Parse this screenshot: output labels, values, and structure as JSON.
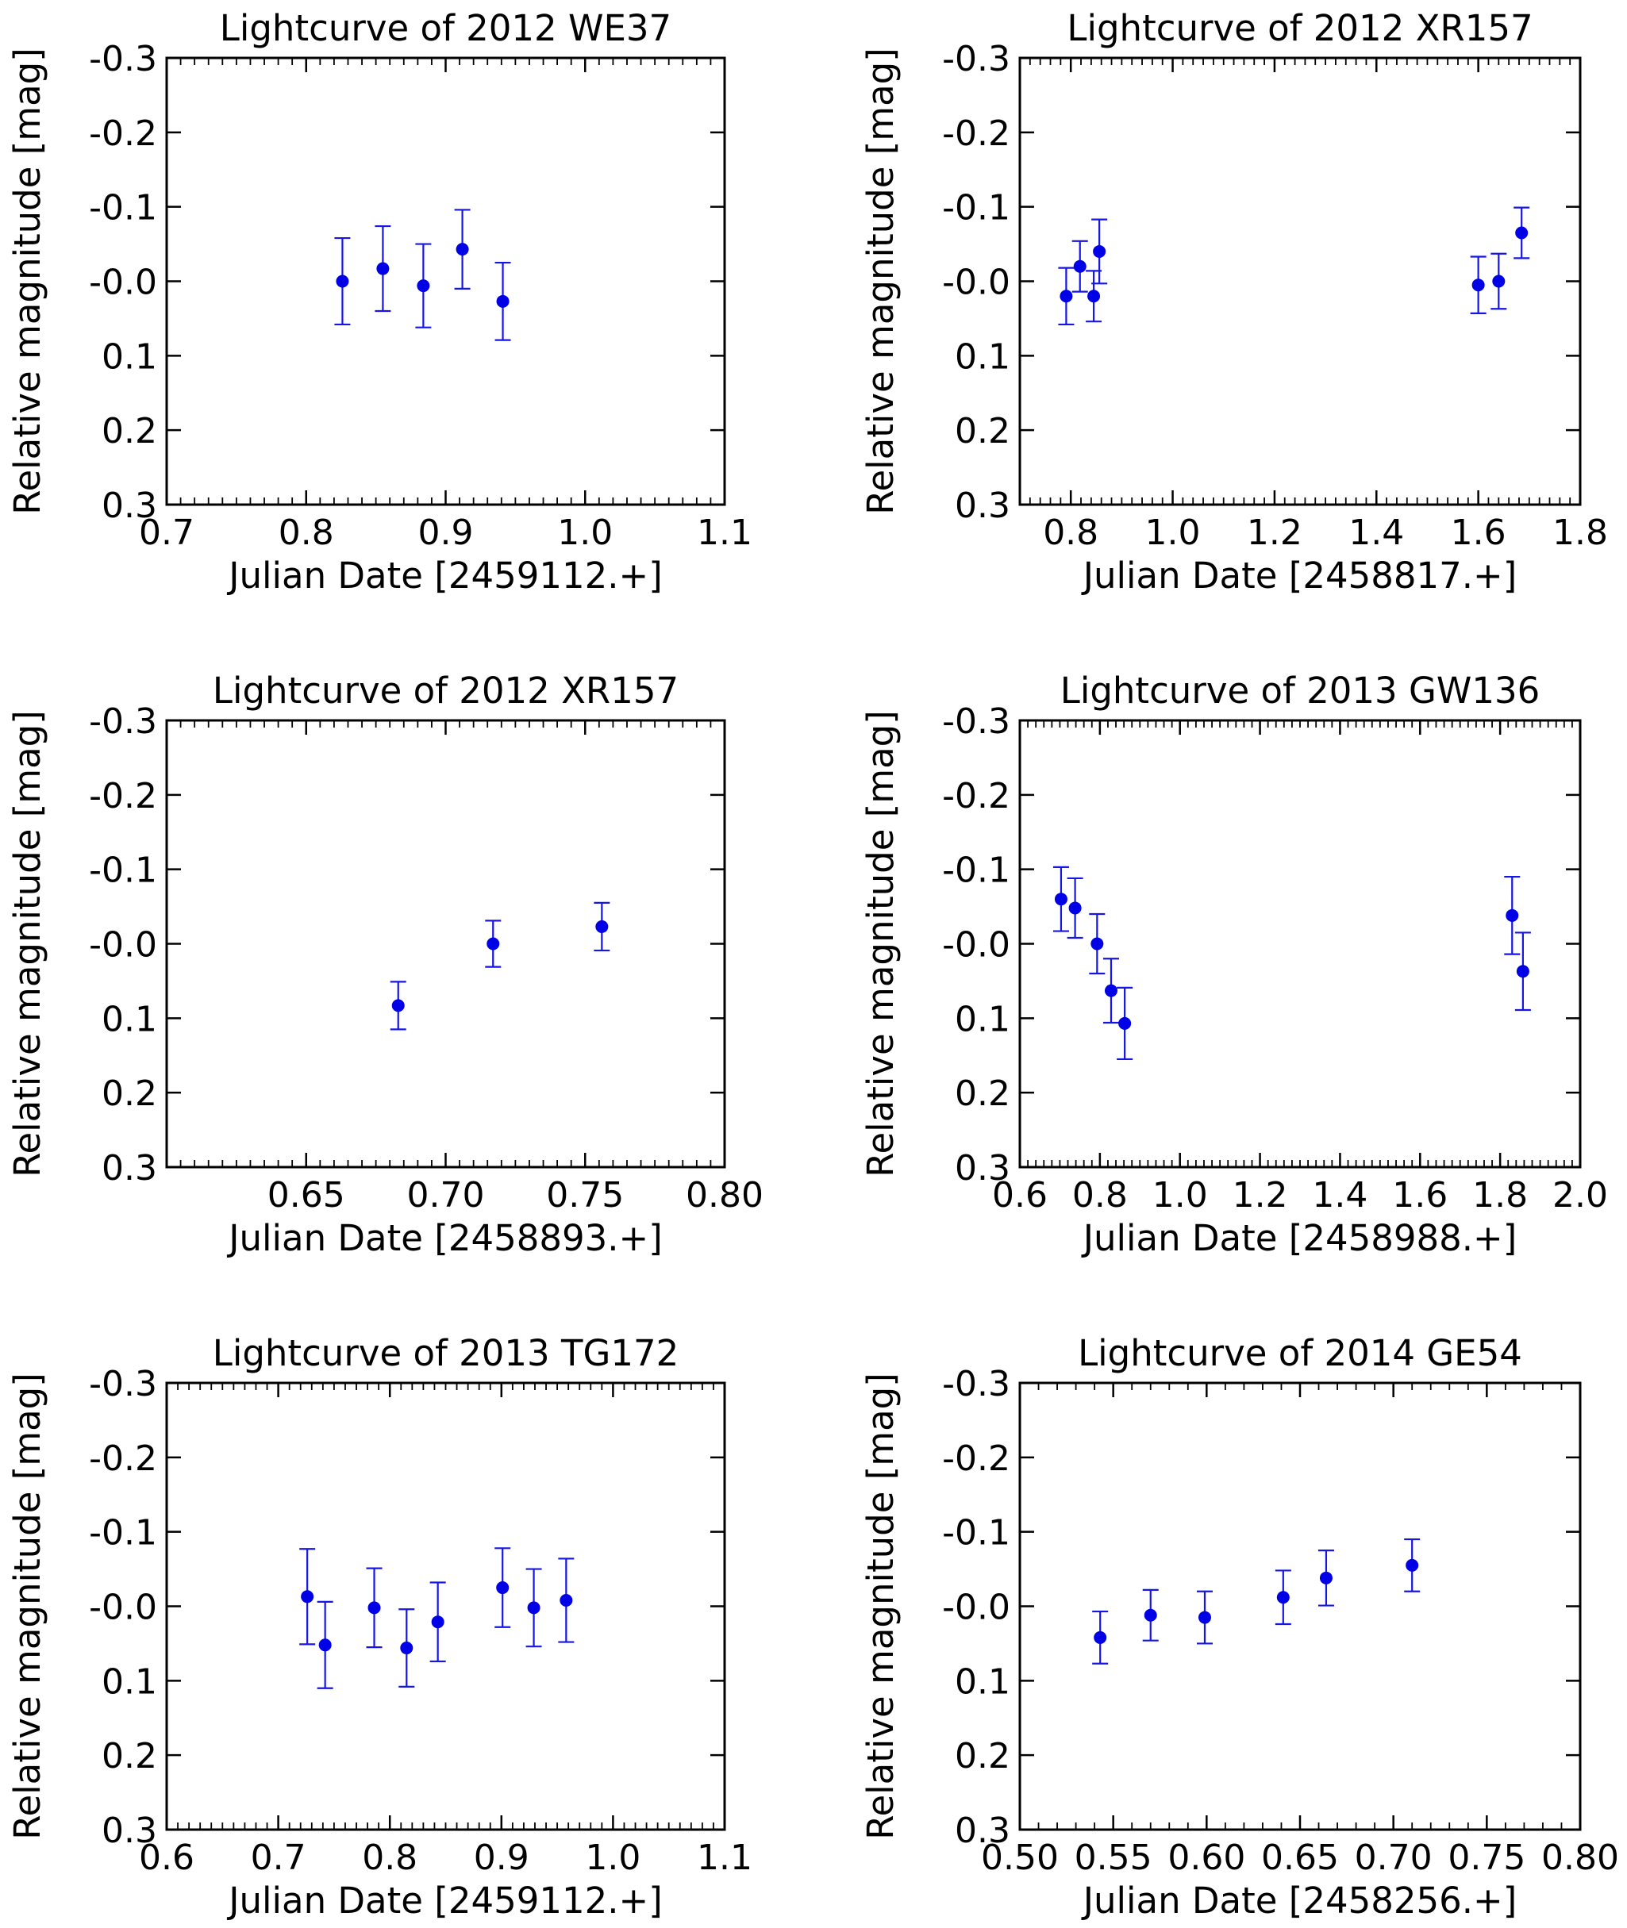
{
  "chart_data": [
    {
      "type": "scatter",
      "title": "Lightcurve of 2012 WE37",
      "xlabel": "Julian Date [2459112.+]",
      "ylabel": "Relative magnitude [mag]",
      "xlim": [
        0.7,
        1.1
      ],
      "ylim": [
        0.3,
        -0.3
      ],
      "x_ticks": [
        0.7,
        0.8,
        0.9,
        1.0,
        1.1
      ],
      "x_tick_labels": [
        "0.7",
        "0.8",
        "0.9",
        "1.0",
        "1.1"
      ],
      "x_minor_step": 0.01,
      "y_ticks": [
        -0.3,
        -0.2,
        -0.1,
        0.0,
        0.1,
        0.2,
        0.3
      ],
      "y_tick_labels": [
        "-0.3",
        "-0.2",
        "-0.1",
        "-0.0",
        "0.1",
        "0.2",
        "0.3"
      ],
      "series": [
        {
          "name": "2012 WE37",
          "x": [
            0.826,
            0.855,
            0.884,
            0.912,
            0.941
          ],
          "y": [
            0.0,
            -0.017,
            0.006,
            -0.043,
            0.027
          ],
          "yerr": [
            0.058,
            0.057,
            0.056,
            0.053,
            0.052
          ]
        }
      ]
    },
    {
      "type": "scatter",
      "title": "Lightcurve of 2012 XR157",
      "xlabel": "Julian Date [2458817.+]",
      "ylabel": "Relative magnitude [mag]",
      "xlim": [
        0.7,
        1.8
      ],
      "ylim": [
        0.3,
        -0.3
      ],
      "x_ticks": [
        0.8,
        1.0,
        1.2,
        1.4,
        1.6,
        1.8
      ],
      "x_tick_labels": [
        "0.8",
        "1.0",
        "1.2",
        "1.4",
        "1.6",
        "1.8"
      ],
      "x_minor_step": 0.02,
      "y_ticks": [
        -0.3,
        -0.2,
        -0.1,
        0.0,
        0.1,
        0.2,
        0.3
      ],
      "y_tick_labels": [
        "-0.3",
        "-0.2",
        "-0.1",
        "-0.0",
        "0.1",
        "0.2",
        "0.3"
      ],
      "series": [
        {
          "name": "2012 XR157",
          "x": [
            0.791,
            0.818,
            0.845,
            0.856,
            1.6,
            1.64,
            1.685
          ],
          "y": [
            0.02,
            -0.02,
            0.02,
            -0.04,
            0.005,
            0.0,
            -0.065
          ],
          "yerr": [
            0.038,
            0.034,
            0.034,
            0.043,
            0.038,
            0.037,
            0.034
          ]
        }
      ]
    },
    {
      "type": "scatter",
      "title": "Lightcurve of 2012 XR157",
      "xlabel": "Julian Date [2458893.+]",
      "ylabel": "Relative magnitude [mag]",
      "xlim": [
        0.6,
        0.8
      ],
      "ylim": [
        0.3,
        -0.3
      ],
      "x_ticks": [
        0.65,
        0.7,
        0.75,
        0.8
      ],
      "x_tick_labels": [
        "0.65",
        "0.70",
        "0.75",
        "0.80"
      ],
      "x_minor_step": 0.005,
      "y_ticks": [
        -0.3,
        -0.2,
        -0.1,
        0.0,
        0.1,
        0.2,
        0.3
      ],
      "y_tick_labels": [
        "-0.3",
        "-0.2",
        "-0.1",
        "-0.0",
        "0.1",
        "0.2",
        "0.3"
      ],
      "series": [
        {
          "name": "2012 XR157",
          "x": [
            0.683,
            0.717,
            0.756
          ],
          "y": [
            0.083,
            0.0,
            -0.023
          ],
          "yerr": [
            0.032,
            0.031,
            0.032
          ]
        }
      ]
    },
    {
      "type": "scatter",
      "title": "Lightcurve of 2013 GW136",
      "xlabel": "Julian Date [2458988.+]",
      "ylabel": "Relative magnitude [mag]",
      "xlim": [
        0.6,
        2.0
      ],
      "ylim": [
        0.3,
        -0.3
      ],
      "x_ticks": [
        0.6,
        0.8,
        1.0,
        1.2,
        1.4,
        1.6,
        1.8,
        2.0
      ],
      "x_tick_labels": [
        "0.6",
        "0.8",
        "1.0",
        "1.2",
        "1.4",
        "1.6",
        "1.8",
        "2.0"
      ],
      "x_minor_step": 0.02,
      "y_ticks": [
        -0.3,
        -0.2,
        -0.1,
        0.0,
        0.1,
        0.2,
        0.3
      ],
      "y_tick_labels": [
        "-0.3",
        "-0.2",
        "-0.1",
        "-0.0",
        "0.1",
        "0.2",
        "0.3"
      ],
      "series": [
        {
          "name": "2013 GW136",
          "x": [
            0.703,
            0.738,
            0.793,
            0.828,
            0.862,
            1.83,
            1.857
          ],
          "y": [
            -0.06,
            -0.048,
            0.0,
            0.063,
            0.107,
            -0.038,
            0.037
          ],
          "yerr": [
            0.043,
            0.04,
            0.04,
            0.043,
            0.048,
            0.052,
            0.052
          ]
        }
      ]
    },
    {
      "type": "scatter",
      "title": "Lightcurve of 2013 TG172",
      "xlabel": "Julian Date [2459112.+]",
      "ylabel": "Relative magnitude [mag]",
      "xlim": [
        0.6,
        1.1
      ],
      "ylim": [
        0.3,
        -0.3
      ],
      "x_ticks": [
        0.6,
        0.7,
        0.8,
        0.9,
        1.0,
        1.1
      ],
      "x_tick_labels": [
        "0.6",
        "0.7",
        "0.8",
        "0.9",
        "1.0",
        "1.1"
      ],
      "x_minor_step": 0.01,
      "y_ticks": [
        -0.3,
        -0.2,
        -0.1,
        0.0,
        0.1,
        0.2,
        0.3
      ],
      "y_tick_labels": [
        "-0.3",
        "-0.2",
        "-0.1",
        "-0.0",
        "0.1",
        "0.2",
        "0.3"
      ],
      "series": [
        {
          "name": "2013 TG172",
          "x": [
            0.726,
            0.742,
            0.786,
            0.815,
            0.843,
            0.901,
            0.929,
            0.958
          ],
          "y": [
            -0.013,
            0.052,
            0.002,
            0.056,
            0.021,
            -0.025,
            0.002,
            -0.008
          ],
          "yerr": [
            0.064,
            0.058,
            0.053,
            0.052,
            0.053,
            0.053,
            0.052,
            0.056
          ]
        }
      ]
    },
    {
      "type": "scatter",
      "title": "Lightcurve of 2014 GE54",
      "xlabel": "Julian Date [2458256.+]",
      "ylabel": "Relative magnitude [mag]",
      "xlim": [
        0.5,
        0.8
      ],
      "ylim": [
        0.3,
        -0.3
      ],
      "x_ticks": [
        0.5,
        0.55,
        0.6,
        0.65,
        0.7,
        0.75,
        0.8
      ],
      "x_tick_labels": [
        "0.50",
        "0.55",
        "0.60",
        "0.65",
        "0.70",
        "0.75",
        "0.80"
      ],
      "x_minor_step": 0.01,
      "y_ticks": [
        -0.3,
        -0.2,
        -0.1,
        0.0,
        0.1,
        0.2,
        0.3
      ],
      "y_tick_labels": [
        "-0.3",
        "-0.2",
        "-0.1",
        "-0.0",
        "0.1",
        "0.2",
        "0.3"
      ],
      "series": [
        {
          "name": "2014 GE54",
          "x": [
            0.543,
            0.57,
            0.599,
            0.641,
            0.664,
            0.71
          ],
          "y": [
            0.042,
            0.012,
            0.015,
            -0.012,
            -0.038,
            -0.055
          ],
          "yerr": [
            0.035,
            0.034,
            0.035,
            0.036,
            0.037,
            0.035
          ]
        }
      ]
    }
  ]
}
